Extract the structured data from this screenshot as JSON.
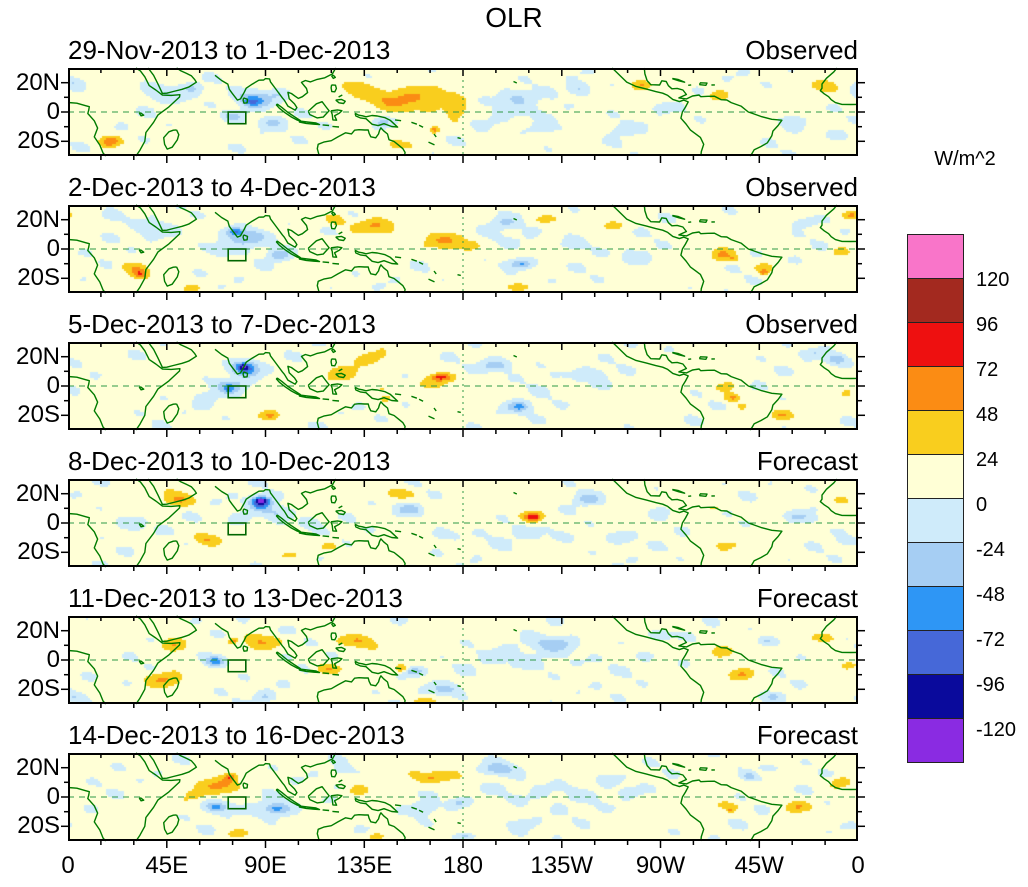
{
  "title": "OLR",
  "colorbar": {
    "unit_label": "W/m^2",
    "tick_labels": [
      "120",
      "96",
      "72",
      "48",
      "24",
      "0",
      "-24",
      "-48",
      "-72",
      "-96",
      "-120"
    ]
  },
  "axes": {
    "x_tick_labels": [
      "0",
      "45E",
      "90E",
      "135E",
      "180",
      "135W",
      "90W",
      "45W",
      "0"
    ],
    "y_tick_labels": [
      "20N",
      "0",
      "20S"
    ]
  },
  "map_style": {
    "coast_color": "#007B00",
    "gridline_color": "#2E9945",
    "frame_color": "#000000",
    "box_color": "#006600"
  },
  "chart_data": {
    "type": "heatmap",
    "title": "OLR",
    "unit": "W/m^2",
    "lon_range": [
      0,
      360
    ],
    "lat_range": [
      -30,
      30
    ],
    "levels": [
      -120,
      -96,
      -72,
      -48,
      -24,
      0,
      24,
      48,
      72,
      96,
      120
    ],
    "palette": [
      "#8A2BE2",
      "#0A0A9C",
      "#4668D8",
      "#2E96F5",
      "#A6CEF3",
      "#CFEBFA",
      "#FFFFD6",
      "#F9CE1E",
      "#FB8C14",
      "#EE1010",
      "#A3291F",
      "#F975C9"
    ],
    "box_region": {
      "lon": [
        73,
        81
      ],
      "lat": [
        -8,
        0
      ]
    },
    "panels": [
      {
        "label": "29-Nov-2013 to 1-Dec-2013",
        "type": "Observed",
        "base": 8,
        "features": [
          [
            3,
            20,
            5,
            4,
            -30
          ],
          [
            19,
            -20,
            5,
            4,
            62
          ],
          [
            44,
            13,
            12,
            6,
            -26
          ],
          [
            57,
            16,
            4,
            3,
            -25
          ],
          [
            85,
            8,
            8,
            6,
            -72
          ],
          [
            84,
            7,
            3,
            2,
            -30
          ],
          [
            97,
            13,
            5,
            4,
            -30
          ],
          [
            75,
            -3,
            5,
            4,
            -42
          ],
          [
            93,
            -7,
            6,
            4,
            -38
          ],
          [
            152,
            9,
            20,
            8,
            46
          ],
          [
            131,
            17,
            8,
            5,
            30
          ],
          [
            177,
            0,
            5,
            7,
            40
          ],
          [
            167,
            -12,
            2.5,
            2.5,
            55
          ],
          [
            143,
            -8,
            5,
            4,
            -45
          ],
          [
            150,
            -23,
            8,
            4,
            30
          ],
          [
            205,
            10,
            7,
            5,
            -32
          ],
          [
            217,
            -11,
            7,
            4,
            -26
          ],
          [
            233,
            16,
            5,
            4,
            -36
          ],
          [
            253,
            -12,
            7,
            4,
            -24
          ],
          [
            262,
            18,
            4,
            3,
            33
          ],
          [
            271,
            3,
            4,
            3,
            -24
          ],
          [
            296,
            11,
            5,
            4,
            40
          ],
          [
            330,
            -6,
            5,
            4,
            -28
          ],
          [
            345,
            18,
            6,
            4,
            38
          ],
          [
            352,
            -16,
            4,
            3,
            -26
          ],
          [
            210,
            0,
            30,
            10,
            -10
          ]
        ]
      },
      {
        "label": "2-Dec-2013 to 4-Dec-2013",
        "type": "Observed",
        "base": 8,
        "features": [
          [
            80,
            8,
            9,
            6,
            -62
          ],
          [
            76,
            12,
            3,
            2.5,
            -55
          ],
          [
            96,
            -4,
            5,
            4,
            -48
          ],
          [
            68,
            0,
            6,
            4,
            -30
          ],
          [
            33,
            -17,
            4,
            3.5,
            58
          ],
          [
            29,
            -13,
            6,
            4,
            25
          ],
          [
            55,
            -27,
            5,
            3,
            30
          ],
          [
            40,
            12,
            8,
            5,
            -22
          ],
          [
            20,
            22,
            6,
            4,
            -25
          ],
          [
            140,
            16,
            10,
            5,
            42
          ],
          [
            122,
            20,
            5,
            4,
            30
          ],
          [
            172,
            5,
            12,
            6,
            45
          ],
          [
            183,
            2,
            4,
            3,
            28
          ],
          [
            205,
            -10,
            7,
            4,
            -48
          ],
          [
            207,
            -11,
            2.5,
            2,
            -25
          ],
          [
            199,
            18,
            6,
            4,
            -33
          ],
          [
            218,
            20,
            5,
            3,
            35
          ],
          [
            248,
            16,
            5,
            3,
            32
          ],
          [
            230,
            3,
            6,
            4,
            -20
          ],
          [
            207,
            -26,
            5,
            3,
            30
          ],
          [
            260,
            -5,
            8,
            5,
            -18
          ],
          [
            298,
            -4,
            5,
            4,
            42
          ],
          [
            303,
            -7,
            2,
            2,
            30
          ],
          [
            317,
            -16,
            2,
            2,
            45
          ],
          [
            318,
            -13,
            5,
            4,
            30
          ],
          [
            335,
            18,
            5,
            3,
            -35
          ],
          [
            352,
            -2,
            4,
            3,
            35
          ],
          [
            357,
            23,
            4,
            3,
            45
          ],
          [
            210,
            8,
            25,
            8,
            -10
          ]
        ]
      },
      {
        "label": "5-Dec-2013 to 7-Dec-2013",
        "type": "Observed",
        "base": 8,
        "features": [
          [
            81,
            12,
            6,
            5,
            -85
          ],
          [
            80,
            13,
            2.5,
            2,
            -60
          ],
          [
            74,
            0,
            7,
            5,
            -50
          ],
          [
            73,
            -2,
            2,
            2,
            -35
          ],
          [
            92,
            -20,
            4,
            3,
            42
          ],
          [
            63,
            -8,
            5,
            4,
            -25
          ],
          [
            125,
            8,
            8,
            5,
            32
          ],
          [
            138,
            19,
            6,
            4,
            35
          ],
          [
            145,
            -8,
            4,
            3,
            30
          ],
          [
            143,
            -2,
            2,
            1.5,
            40
          ],
          [
            170,
            6,
            5,
            2.5,
            62
          ],
          [
            168,
            2,
            10,
            5,
            30
          ],
          [
            195,
            14,
            7,
            4,
            -50
          ],
          [
            205,
            -14,
            6,
            4,
            -48
          ],
          [
            206,
            -14,
            2,
            2,
            -20
          ],
          [
            225,
            3,
            4,
            3,
            30
          ],
          [
            240,
            8,
            6,
            4,
            -20
          ],
          [
            255,
            -18,
            6,
            4,
            -20
          ],
          [
            303,
            -8,
            4,
            3,
            50
          ],
          [
            307,
            -14,
            2,
            2,
            40
          ],
          [
            300,
            0,
            5,
            4,
            30
          ],
          [
            325,
            -20,
            5,
            3,
            30
          ],
          [
            350,
            18,
            5,
            4,
            -45
          ],
          [
            340,
            22,
            5,
            3,
            -25
          ],
          [
            355,
            -5,
            3,
            3,
            35
          ],
          [
            215,
            5,
            25,
            8,
            -10
          ]
        ]
      },
      {
        "label": "8-Dec-2013 to 10-Dec-2013",
        "type": "Forecast",
        "base": 8,
        "features": [
          [
            88,
            14,
            5,
            4.5,
            -105
          ],
          [
            88,
            15,
            2.5,
            2,
            -60
          ],
          [
            96,
            7,
            7,
            5,
            -40
          ],
          [
            79,
            3,
            5,
            4,
            -30
          ],
          [
            50,
            16,
            7,
            5,
            42
          ],
          [
            63,
            -11,
            6,
            4,
            38
          ],
          [
            100,
            -22,
            6,
            3,
            32
          ],
          [
            110,
            0,
            5,
            4,
            -32
          ],
          [
            120,
            -16,
            5,
            3,
            30
          ],
          [
            150,
            20,
            7,
            4,
            35
          ],
          [
            155,
            9,
            6,
            4,
            -42
          ],
          [
            170,
            -8,
            6,
            4,
            -28
          ],
          [
            212,
            4,
            3.5,
            3,
            60
          ],
          [
            212,
            4,
            8,
            5,
            25
          ],
          [
            237,
            16,
            6,
            4,
            -42
          ],
          [
            252,
            -10,
            6,
            4,
            -28
          ],
          [
            270,
            8,
            5,
            4,
            -28
          ],
          [
            295,
            10,
            4,
            3,
            28
          ],
          [
            300,
            -15,
            5,
            3,
            32
          ],
          [
            332,
            4,
            6,
            4,
            -45
          ],
          [
            340,
            10,
            4,
            3,
            -20
          ],
          [
            352,
            15,
            4,
            3,
            30
          ],
          [
            355,
            -12,
            4,
            3,
            -25
          ],
          [
            215,
            -8,
            25,
            8,
            -10
          ],
          [
            30,
            0,
            10,
            6,
            -15
          ]
        ]
      },
      {
        "label": "11-Dec-2013 to 13-Dec-2013",
        "type": "Forecast",
        "base": 8,
        "features": [
          [
            48,
            10,
            7,
            5,
            42
          ],
          [
            44,
            -13,
            8,
            5,
            42
          ],
          [
            75,
            13,
            2,
            2,
            55
          ],
          [
            88,
            12,
            7,
            5,
            40
          ],
          [
            67,
            -1,
            4,
            3,
            -55
          ],
          [
            65,
            1,
            8,
            5,
            -20
          ],
          [
            90,
            -25,
            5,
            3,
            -30
          ],
          [
            118,
            -6,
            6,
            4,
            38
          ],
          [
            132,
            13,
            9,
            5,
            45
          ],
          [
            100,
            20,
            4,
            3,
            -26
          ],
          [
            152,
            -6,
            2,
            2,
            48
          ],
          [
            158,
            -8,
            4.5,
            3,
            -52
          ],
          [
            172,
            -20,
            7,
            4,
            -36
          ],
          [
            162,
            -28,
            6,
            3,
            30
          ],
          [
            222,
            11,
            9,
            5,
            -46
          ],
          [
            215,
            0,
            30,
            10,
            -13
          ],
          [
            270,
            17,
            5,
            3,
            -32
          ],
          [
            297,
            6,
            5,
            4,
            42
          ],
          [
            307,
            -10,
            5,
            4,
            38
          ],
          [
            318,
            13,
            4,
            3,
            -36
          ],
          [
            321,
            -25,
            5,
            3,
            -28
          ],
          [
            345,
            15,
            6,
            3,
            32
          ],
          [
            355,
            -4,
            4,
            3,
            38
          ],
          [
            3,
            -25,
            5,
            3,
            -25
          ]
        ]
      },
      {
        "label": "14-Dec-2013 to 16-Dec-2013",
        "type": "Forecast",
        "base": 8,
        "features": [
          [
            70,
            8,
            9,
            6,
            42
          ],
          [
            74,
            13,
            2.5,
            2.5,
            42
          ],
          [
            68,
            -7,
            6,
            4,
            -52
          ],
          [
            67,
            -7,
            2,
            2,
            -28
          ],
          [
            95,
            -8,
            8,
            5,
            -52
          ],
          [
            95,
            -8,
            3,
            2,
            -22
          ],
          [
            78,
            -25,
            5,
            3,
            36
          ],
          [
            58,
            2,
            5,
            4,
            28
          ],
          [
            120,
            -2,
            4,
            3,
            -30
          ],
          [
            125,
            18,
            4,
            3,
            -26
          ],
          [
            132,
            4,
            4,
            3,
            28
          ],
          [
            170,
            14,
            13,
            4,
            42
          ],
          [
            162,
            -8,
            5,
            4,
            -38
          ],
          [
            178,
            -4,
            4,
            3,
            -33
          ],
          [
            181,
            -27,
            4,
            2,
            -40
          ],
          [
            196,
            19,
            7,
            4,
            -50
          ],
          [
            215,
            3,
            28,
            10,
            -14
          ],
          [
            207,
            -18,
            6,
            4,
            -25
          ],
          [
            246,
            12,
            5,
            3,
            -22
          ],
          [
            256,
            3,
            4,
            3,
            -26
          ],
          [
            300,
            -6,
            5,
            3,
            30
          ],
          [
            302,
            -9,
            1.8,
            1.5,
            35
          ],
          [
            310,
            14,
            4,
            3,
            -48
          ],
          [
            318,
            20,
            6,
            3,
            -25
          ],
          [
            332,
            -7,
            6,
            4,
            40
          ],
          [
            352,
            10,
            5,
            4,
            36
          ],
          [
            356,
            -20,
            5,
            3,
            -22
          ],
          [
            140,
            -27,
            5,
            3,
            30
          ]
        ]
      }
    ]
  }
}
